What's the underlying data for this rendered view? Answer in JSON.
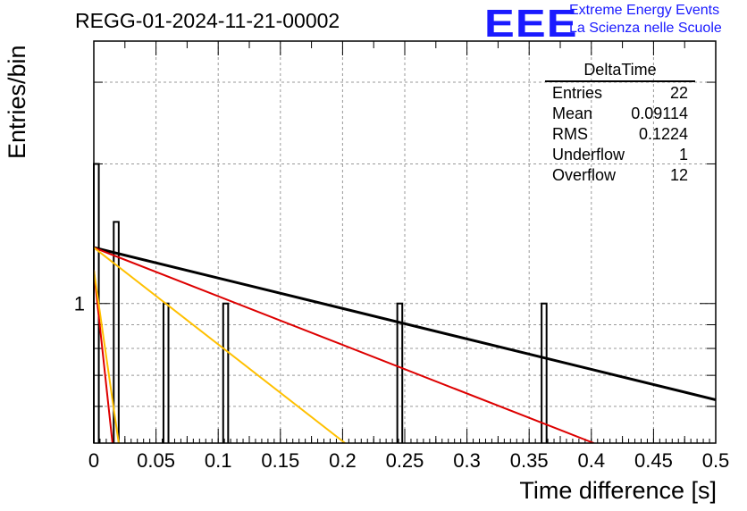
{
  "header": {
    "title": "REGG-01-2024-11-21-00002",
    "logo_text": "EEE",
    "logo_line1": "Extreme Energy Events",
    "logo_line2": "La Scienza nelle Scuole"
  },
  "stats": {
    "title": "DeltaTime",
    "rows": [
      {
        "label": "Entries",
        "value": "22"
      },
      {
        "label": "Mean",
        "value": "0.09114"
      },
      {
        "label": "RMS",
        "value": "0.1224"
      },
      {
        "label": "Underflow",
        "value": "1"
      },
      {
        "label": "Overflow",
        "value": "12"
      }
    ]
  },
  "chart_data": {
    "type": "bar",
    "title": "REGG-01-2024-11-21-00002",
    "xlabel": "Time difference [s]",
    "ylabel": "Entries/bin",
    "xlim": [
      0,
      0.5
    ],
    "ylog": true,
    "ylim": [
      0.5,
      3.68
    ],
    "grid": true,
    "x_ticks": [
      "0",
      "0.05",
      "0.1",
      "0.15",
      "0.2",
      "0.25",
      "0.3",
      "0.35",
      "0.4",
      "0.45",
      "0.5"
    ],
    "y_tick_labels": [
      {
        "value": 1,
        "label": "1"
      }
    ],
    "bin_width": 0.004,
    "bins": [
      {
        "x": 0.002,
        "count": 2
      },
      {
        "x": 0.018,
        "count": 1.5
      },
      {
        "x": 0.058,
        "count": 1
      },
      {
        "x": 0.106,
        "count": 1
      },
      {
        "x": 0.246,
        "count": 1
      },
      {
        "x": 0.362,
        "count": 1
      }
    ],
    "fits": [
      {
        "color": "#000000",
        "points": [
          [
            0,
            1.32
          ],
          [
            0.5,
            0.62
          ]
        ]
      },
      {
        "color": "#dd0000",
        "points": [
          [
            0,
            1.32
          ],
          [
            0.402,
            0.5
          ]
        ]
      },
      {
        "color": "#ffc000",
        "points": [
          [
            0,
            1.32
          ],
          [
            0.202,
            0.5
          ]
        ]
      },
      {
        "color": "#dd0000",
        "points": [
          [
            0,
            1.18
          ],
          [
            0.015,
            0.5
          ]
        ]
      },
      {
        "color": "#ffc000",
        "points": [
          [
            0,
            1.18
          ],
          [
            0.02,
            0.5
          ]
        ]
      }
    ],
    "legend_position": "top-right"
  }
}
